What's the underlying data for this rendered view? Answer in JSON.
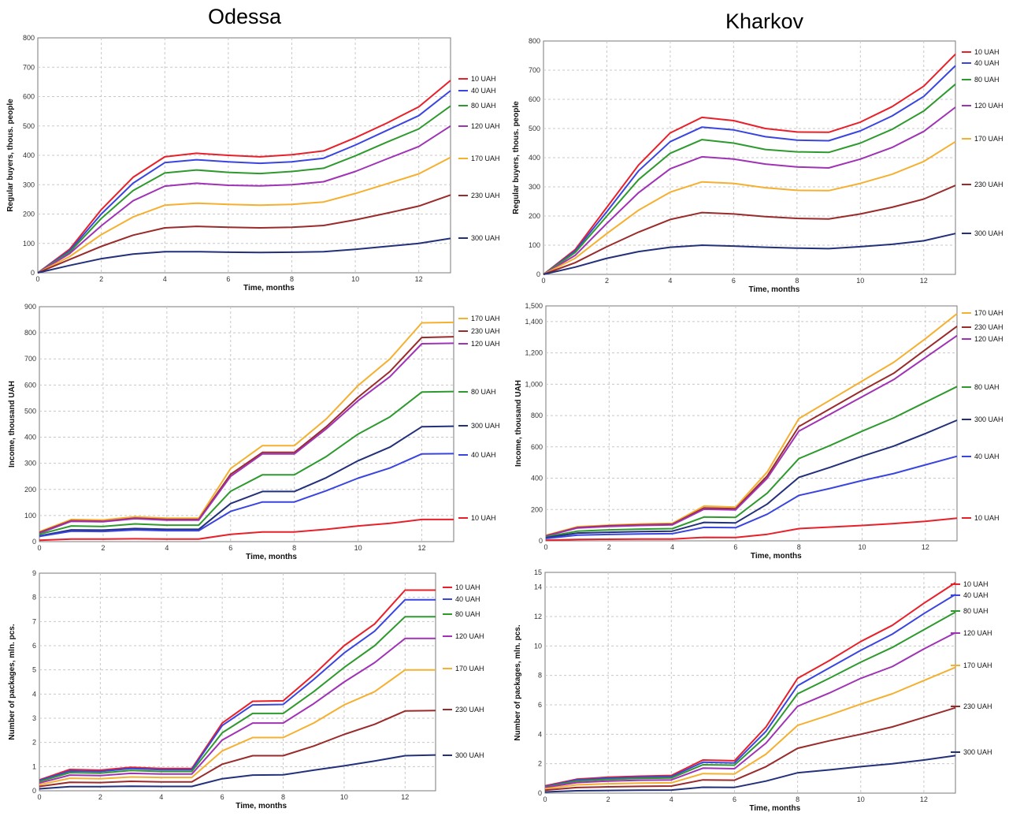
{
  "titles": {
    "odessa": "Odessa",
    "kharkov": "Kharkov"
  },
  "chart_data": [
    {
      "id": "odessa-buyers",
      "type": "line",
      "title": "",
      "xlabel": "Time, months",
      "ylabel": "Regular buyers, thous. people",
      "xlim": [
        0,
        13
      ],
      "ylim": [
        0,
        800
      ],
      "xticks": [
        "0",
        "2",
        "4",
        "6",
        "8",
        "10",
        "12"
      ],
      "yticks": [
        "0",
        "100",
        "200",
        "300",
        "400",
        "500",
        "600",
        "700",
        "800"
      ],
      "grid": true,
      "legend": "right",
      "x": [
        0,
        1,
        2,
        3,
        4,
        5,
        6,
        7,
        8,
        9,
        10,
        11,
        12,
        13
      ],
      "series": [
        {
          "name": "10 UAH",
          "color": "#e8202a",
          "values": [
            0,
            80,
            215,
            325,
            395,
            407,
            400,
            395,
            402,
            415,
            460,
            510,
            565,
            655
          ]
        },
        {
          "name": "40 UAH",
          "color": "#3a45e0",
          "values": [
            0,
            75,
            200,
            305,
            375,
            385,
            378,
            373,
            378,
            390,
            435,
            485,
            535,
            620
          ]
        },
        {
          "name": "80 UAH",
          "color": "#2e9a2e",
          "values": [
            0,
            70,
            185,
            280,
            340,
            350,
            342,
            338,
            345,
            356,
            398,
            445,
            490,
            568
          ]
        },
        {
          "name": "120 UAH",
          "color": "#a033b5",
          "values": [
            0,
            65,
            160,
            245,
            295,
            305,
            298,
            296,
            300,
            310,
            345,
            388,
            430,
            500
          ]
        },
        {
          "name": "170 UAH",
          "color": "#f5b030",
          "values": [
            0,
            55,
            130,
            190,
            230,
            237,
            233,
            230,
            233,
            241,
            270,
            303,
            337,
            393
          ]
        },
        {
          "name": "230 UAH",
          "color": "#9a2b2b",
          "values": [
            0,
            45,
            90,
            128,
            153,
            158,
            155,
            153,
            155,
            161,
            180,
            203,
            227,
            265
          ]
        },
        {
          "name": "300 UAH",
          "color": "#23307a",
          "values": [
            0,
            25,
            48,
            64,
            72,
            72,
            70,
            69,
            70,
            72,
            80,
            90,
            100,
            117
          ]
        }
      ]
    },
    {
      "id": "kharkov-buyers",
      "type": "line",
      "title": "",
      "xlabel": "Time, months",
      "ylabel": "Regular buyers, thous. people",
      "xlim": [
        0,
        13
      ],
      "ylim": [
        0,
        800
      ],
      "xticks": [
        "0",
        "2",
        "4",
        "6",
        "8",
        "10",
        "12"
      ],
      "yticks": [
        "0",
        "100",
        "200",
        "300",
        "400",
        "500",
        "600",
        "700",
        "800"
      ],
      "grid": true,
      "legend": "right",
      "x": [
        0,
        1,
        2,
        3,
        4,
        5,
        6,
        7,
        8,
        9,
        10,
        11,
        12,
        13
      ],
      "series": [
        {
          "name": "10 UAH",
          "color": "#e8202a",
          "values": [
            0,
            85,
            230,
            375,
            485,
            538,
            527,
            500,
            488,
            487,
            522,
            575,
            645,
            755
          ]
        },
        {
          "name": "40 UAH",
          "color": "#3a45e0",
          "values": [
            0,
            80,
            215,
            355,
            455,
            505,
            495,
            472,
            460,
            458,
            492,
            543,
            610,
            715
          ]
        },
        {
          "name": "80 UAH",
          "color": "#2e9a2e",
          "values": [
            0,
            75,
            200,
            325,
            415,
            462,
            450,
            428,
            420,
            418,
            450,
            497,
            560,
            652
          ]
        },
        {
          "name": "120 UAH",
          "color": "#a033b5",
          "values": [
            0,
            65,
            175,
            280,
            362,
            403,
            395,
            378,
            368,
            365,
            395,
            435,
            490,
            573
          ]
        },
        {
          "name": "170 UAH",
          "color": "#f5b030",
          "values": [
            0,
            55,
            140,
            220,
            282,
            317,
            312,
            297,
            288,
            287,
            312,
            343,
            387,
            455
          ]
        },
        {
          "name": "230 UAH",
          "color": "#9a2b2b",
          "values": [
            0,
            40,
            95,
            145,
            188,
            212,
            207,
            198,
            192,
            190,
            207,
            230,
            258,
            305
          ]
        },
        {
          "name": "300 UAH",
          "color": "#23307a",
          "values": [
            0,
            25,
            55,
            78,
            93,
            100,
            97,
            93,
            90,
            88,
            95,
            103,
            115,
            140
          ]
        }
      ]
    },
    {
      "id": "odessa-income",
      "type": "line",
      "title": "",
      "xlabel": "Time, months",
      "ylabel": "Income, thousand UAH",
      "xlim": [
        0,
        13
      ],
      "ylim": [
        0,
        900
      ],
      "xticks": [
        "0",
        "2",
        "4",
        "6",
        "8",
        "10",
        "12"
      ],
      "yticks": [
        "0",
        "100",
        "200",
        "300",
        "400",
        "500",
        "600",
        "700",
        "800",
        "900"
      ],
      "grid": true,
      "legend": "right",
      "x": [
        0,
        1,
        2,
        3,
        4,
        5,
        6,
        7,
        8,
        9,
        10,
        11,
        12,
        13
      ],
      "series": [
        {
          "name": "170 UAH",
          "color": "#f5b030",
          "values": [
            38,
            85,
            83,
            95,
            90,
            90,
            280,
            368,
            368,
            470,
            598,
            700,
            838,
            840
          ]
        },
        {
          "name": "230 UAH",
          "color": "#9a2b2b",
          "values": [
            35,
            80,
            78,
            90,
            85,
            85,
            258,
            342,
            342,
            440,
            553,
            652,
            782,
            785
          ]
        },
        {
          "name": "120 UAH",
          "color": "#a033b5",
          "values": [
            32,
            78,
            76,
            88,
            82,
            82,
            250,
            336,
            336,
            432,
            540,
            632,
            758,
            760
          ]
        },
        {
          "name": "80 UAH",
          "color": "#2e9a2e",
          "values": [
            28,
            60,
            58,
            68,
            63,
            63,
            193,
            256,
            256,
            326,
            412,
            478,
            573,
            575
          ]
        },
        {
          "name": "300 UAH",
          "color": "#23307a",
          "values": [
            22,
            45,
            44,
            50,
            47,
            47,
            146,
            192,
            192,
            245,
            310,
            362,
            440,
            442
          ]
        },
        {
          "name": "40 UAH",
          "color": "#3a45e0",
          "values": [
            20,
            40,
            39,
            45,
            42,
            42,
            116,
            152,
            152,
            195,
            243,
            282,
            336,
            337
          ]
        },
        {
          "name": "10 UAH",
          "color": "#e8202a",
          "values": [
            5,
            10,
            10,
            11,
            10,
            10,
            28,
            37,
            37,
            47,
            60,
            70,
            85,
            85
          ]
        }
      ]
    },
    {
      "id": "kharkov-income",
      "type": "line",
      "title": "",
      "xlabel": "Time, months",
      "ylabel": "Income, thousand UAH",
      "xlim": [
        0,
        13
      ],
      "ylim": [
        0,
        1500
      ],
      "xticks": [
        "0",
        "2",
        "4",
        "6",
        "8",
        "10",
        "12"
      ],
      "yticks": [
        "0",
        "200",
        "400",
        "600",
        "800",
        "1,000",
        "1,200",
        "1,400",
        "1,500"
      ],
      "yticks_values": [
        0,
        200,
        400,
        600,
        800,
        1000,
        1200,
        1400,
        1500
      ],
      "grid": true,
      "legend": "right",
      "x": [
        0,
        1,
        2,
        3,
        4,
        5,
        6,
        7,
        8,
        9,
        10,
        11,
        12,
        13
      ],
      "series": [
        {
          "name": "170 UAH",
          "color": "#f5b030",
          "values": [
            35,
            90,
            100,
            108,
            112,
            222,
            215,
            440,
            780,
            900,
            1020,
            1140,
            1290,
            1450
          ]
        },
        {
          "name": "230 UAH",
          "color": "#9a2b2b",
          "values": [
            32,
            85,
            96,
            102,
            106,
            210,
            205,
            415,
            730,
            845,
            960,
            1070,
            1220,
            1370
          ]
        },
        {
          "name": "120 UAH",
          "color": "#a033b5",
          "values": [
            30,
            82,
            92,
            98,
            102,
            202,
            198,
            400,
            700,
            810,
            920,
            1030,
            1170,
            1310
          ]
        },
        {
          "name": "80 UAH",
          "color": "#2e9a2e",
          "values": [
            25,
            62,
            70,
            75,
            78,
            152,
            150,
            305,
            525,
            610,
            700,
            785,
            885,
            985
          ]
        },
        {
          "name": "300 UAH",
          "color": "#23307a",
          "values": [
            20,
            50,
            55,
            59,
            62,
            118,
            115,
            235,
            405,
            470,
            540,
            605,
            685,
            770
          ]
        },
        {
          "name": "40 UAH",
          "color": "#3a45e0",
          "values": [
            15,
            36,
            41,
            44,
            46,
            86,
            84,
            170,
            290,
            335,
            385,
            430,
            485,
            540
          ]
        },
        {
          "name": "10 UAH",
          "color": "#e8202a",
          "values": [
            4,
            9,
            10,
            11,
            11,
            22,
            21,
            42,
            78,
            88,
            98,
            110,
            125,
            145
          ]
        }
      ]
    },
    {
      "id": "odessa-packages",
      "type": "line",
      "title": "",
      "xlabel": "Time, months",
      "ylabel": "Number of packages, mln. pcs.",
      "xlim": [
        0,
        13
      ],
      "ylim": [
        0,
        9
      ],
      "xticks": [
        "0",
        "2",
        "4",
        "6",
        "8",
        "10",
        "12"
      ],
      "yticks": [
        "0",
        "1",
        "2",
        "3",
        "4",
        "5",
        "6",
        "7",
        "8",
        "9"
      ],
      "grid": true,
      "legend": "right",
      "x": [
        0,
        1,
        2,
        3,
        4,
        5,
        6,
        7,
        8,
        9,
        10,
        11,
        12,
        13
      ],
      "series": [
        {
          "name": "10 UAH",
          "color": "#e8202a",
          "values": [
            0.45,
            0.88,
            0.85,
            0.97,
            0.92,
            0.92,
            2.8,
            3.7,
            3.72,
            4.8,
            6.0,
            6.9,
            8.3,
            8.3
          ]
        },
        {
          "name": "40 UAH",
          "color": "#3a45e0",
          "values": [
            0.42,
            0.82,
            0.8,
            0.92,
            0.87,
            0.87,
            2.7,
            3.55,
            3.57,
            4.6,
            5.7,
            6.6,
            7.9,
            7.9
          ]
        },
        {
          "name": "80 UAH",
          "color": "#2e9a2e",
          "values": [
            0.38,
            0.75,
            0.73,
            0.84,
            0.8,
            0.8,
            2.4,
            3.2,
            3.2,
            4.1,
            5.1,
            6.0,
            7.2,
            7.2
          ]
        },
        {
          "name": "120 UAH",
          "color": "#a033b5",
          "values": [
            0.32,
            0.65,
            0.63,
            0.72,
            0.69,
            0.69,
            2.1,
            2.8,
            2.8,
            3.6,
            4.5,
            5.3,
            6.3,
            6.3
          ]
        },
        {
          "name": "170 UAH",
          "color": "#f5b030",
          "values": [
            0.25,
            0.52,
            0.5,
            0.57,
            0.55,
            0.55,
            1.65,
            2.2,
            2.2,
            2.8,
            3.55,
            4.1,
            5.0,
            5.0
          ]
        },
        {
          "name": "230 UAH",
          "color": "#9a2b2b",
          "values": [
            0.18,
            0.35,
            0.34,
            0.39,
            0.37,
            0.37,
            1.1,
            1.45,
            1.45,
            1.85,
            2.33,
            2.75,
            3.3,
            3.32
          ]
        },
        {
          "name": "300 UAH",
          "color": "#23307a",
          "values": [
            0.08,
            0.17,
            0.17,
            0.19,
            0.18,
            0.18,
            0.5,
            0.65,
            0.66,
            0.85,
            1.03,
            1.23,
            1.45,
            1.48
          ]
        }
      ]
    },
    {
      "id": "kharkov-packages",
      "type": "line",
      "title": "",
      "xlabel": "Time, months",
      "ylabel": "Number of packages, mln. pcs.",
      "xlim": [
        0,
        13
      ],
      "ylim": [
        0,
        15
      ],
      "xticks": [
        "0",
        "2",
        "4",
        "6",
        "8",
        "10",
        "12"
      ],
      "yticks": [
        "0",
        "2",
        "4",
        "6",
        "8",
        "10",
        "12",
        "14",
        "15"
      ],
      "yticks_values": [
        0,
        2,
        4,
        6,
        8,
        10,
        12,
        14,
        15
      ],
      "grid": true,
      "legend": "right",
      "x": [
        0,
        1,
        2,
        3,
        4,
        5,
        6,
        7,
        8,
        9,
        10,
        11,
        12,
        13
      ],
      "series": [
        {
          "name": "10 UAH",
          "color": "#e8202a",
          "values": [
            0.5,
            0.95,
            1.08,
            1.15,
            1.2,
            2.25,
            2.2,
            4.5,
            7.8,
            9.0,
            10.3,
            11.4,
            12.9,
            14.3
          ]
        },
        {
          "name": "40 UAH",
          "color": "#3a45e0",
          "values": [
            0.45,
            0.9,
            1.02,
            1.08,
            1.12,
            2.1,
            2.05,
            4.2,
            7.3,
            8.5,
            9.7,
            10.8,
            12.2,
            13.5
          ]
        },
        {
          "name": "80 UAH",
          "color": "#2e9a2e",
          "values": [
            0.42,
            0.82,
            0.93,
            1.0,
            1.03,
            1.93,
            1.9,
            3.85,
            6.75,
            7.8,
            8.9,
            9.9,
            11.1,
            12.3
          ]
        },
        {
          "name": "120 UAH",
          "color": "#a033b5",
          "values": [
            0.38,
            0.72,
            0.82,
            0.88,
            0.9,
            1.7,
            1.66,
            3.4,
            5.9,
            6.8,
            7.8,
            8.6,
            9.8,
            10.9
          ]
        },
        {
          "name": "170 UAH",
          "color": "#f5b030",
          "values": [
            0.3,
            0.56,
            0.64,
            0.68,
            0.7,
            1.33,
            1.3,
            2.65,
            4.6,
            5.3,
            6.05,
            6.75,
            7.65,
            8.55
          ]
        },
        {
          "name": "230 UAH",
          "color": "#9a2b2b",
          "values": [
            0.2,
            0.38,
            0.43,
            0.46,
            0.48,
            0.9,
            0.88,
            1.8,
            3.05,
            3.55,
            4.0,
            4.5,
            5.15,
            5.8
          ]
        },
        {
          "name": "300 UAH",
          "color": "#23307a",
          "values": [
            0.08,
            0.16,
            0.18,
            0.2,
            0.21,
            0.4,
            0.39,
            0.82,
            1.38,
            1.58,
            1.8,
            2.0,
            2.25,
            2.55
          ]
        }
      ]
    }
  ]
}
